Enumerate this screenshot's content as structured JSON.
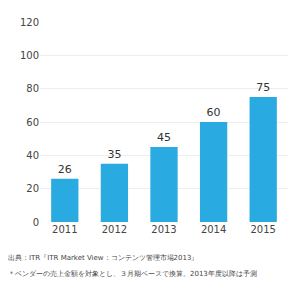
{
  "chart_data": {
    "type": "bar",
    "categories": [
      "2011",
      "2012",
      "2013",
      "2014",
      "2015"
    ],
    "values": [
      26,
      35,
      45,
      60,
      75
    ],
    "color": "#29abe2",
    "ylim": [
      0,
      120
    ],
    "yticks": [
      0,
      20,
      40,
      60,
      80,
      100,
      120
    ],
    "grid": true,
    "data_labels": true,
    "annotations": [
      "出典：ITR『ITR Market View：コンテンツ管理市場2013』",
      "＊ベンダーの売上金額を対象とし、３月期ベースで換算。2013年度以降は予測"
    ]
  }
}
